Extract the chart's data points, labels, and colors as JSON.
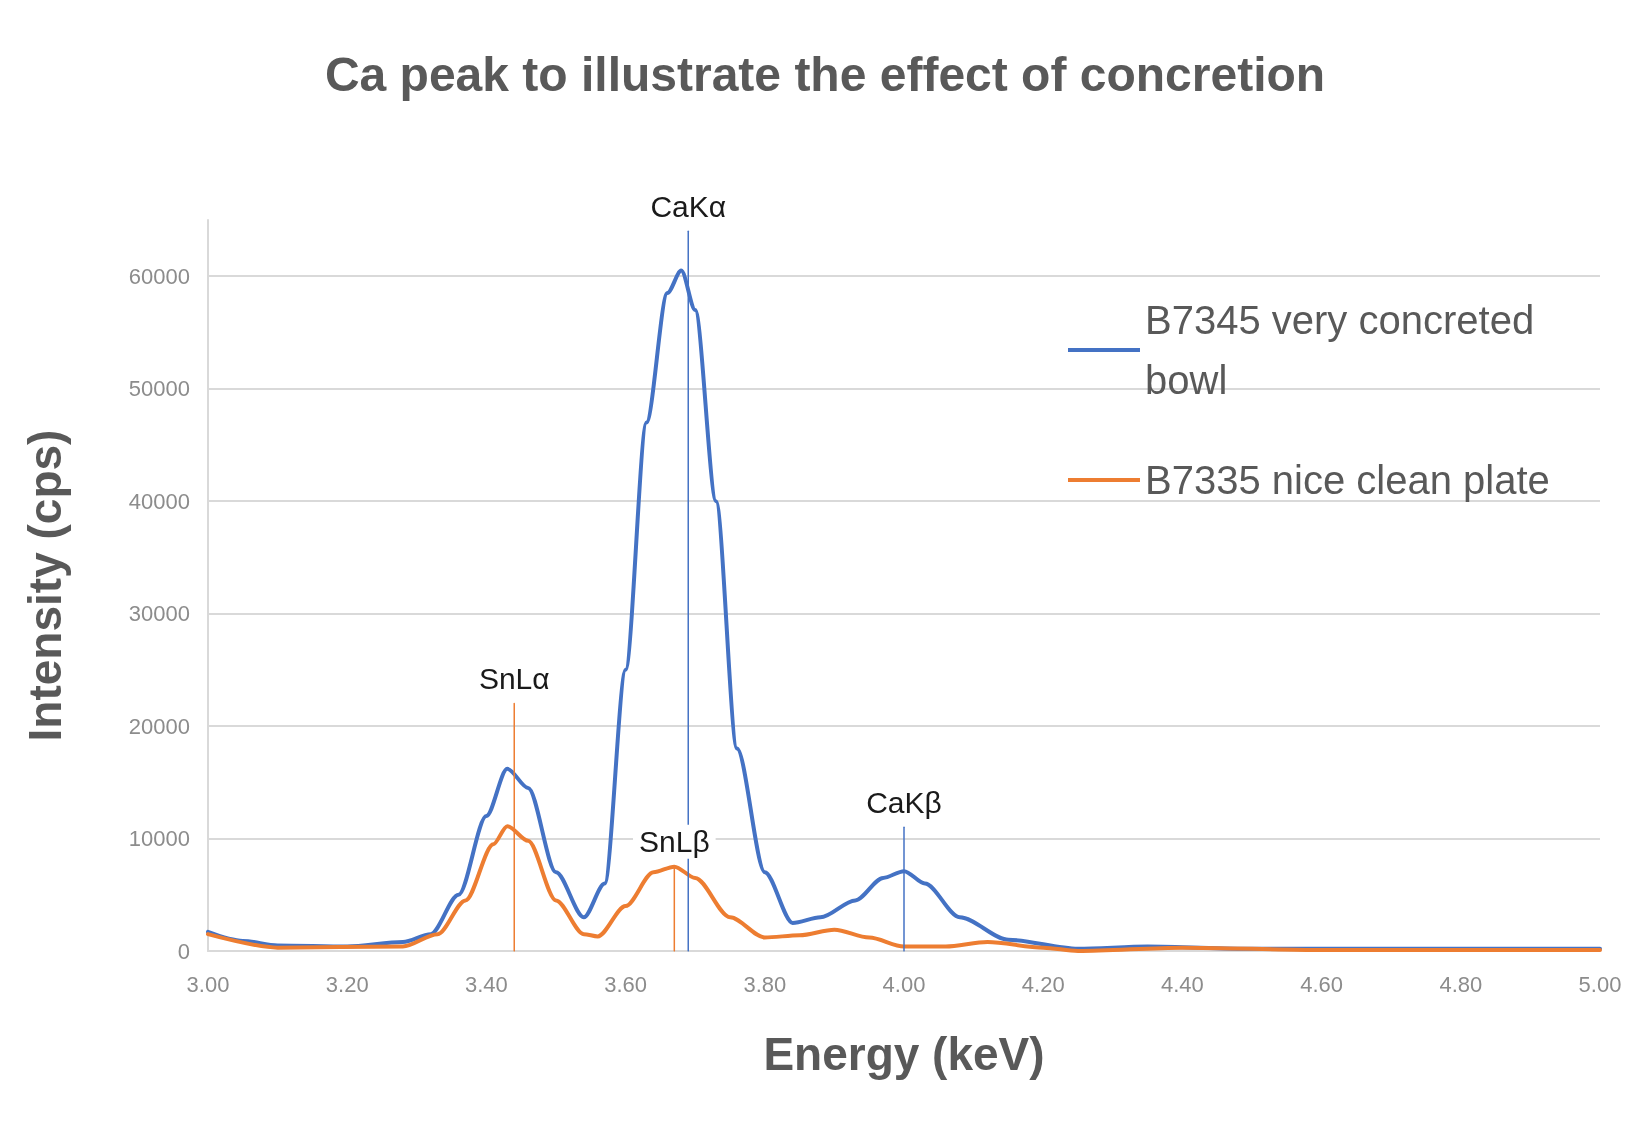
{
  "chart_data": {
    "type": "line",
    "title": "Ca peak to illustrate the effect of concretion",
    "xlabel": "Energy (keV)",
    "ylabel": "Intensity (cps)",
    "xlim": [
      3.0,
      5.0
    ],
    "xticks": [
      {
        "value": 3.0,
        "label": "3.00"
      },
      {
        "value": 3.2,
        "label": "3.20"
      },
      {
        "value": 3.4,
        "label": "3.40"
      },
      {
        "value": 3.6,
        "label": "3.60"
      },
      {
        "value": 3.8,
        "label": "3.80"
      },
      {
        "value": 4.0,
        "label": "4.00"
      },
      {
        "value": 4.2,
        "label": "4.20"
      },
      {
        "value": 4.4,
        "label": "4.40"
      },
      {
        "value": 4.6,
        "label": "4.60"
      },
      {
        "value": 4.8,
        "label": "4.80"
      },
      {
        "value": 5.0,
        "label": "5.00"
      }
    ],
    "ylim": [
      0,
      65000
    ],
    "yticks": [
      0,
      10000,
      20000,
      30000,
      40000,
      50000,
      60000
    ],
    "grid": "y",
    "legend": "top right",
    "marker": "none",
    "line_style": "solid",
    "series": [
      {
        "name": "B7345 very concreted bowl",
        "color": "#4472c4",
        "x": [
          3.0,
          3.05,
          3.1,
          3.2,
          3.28,
          3.32,
          3.36,
          3.4,
          3.43,
          3.46,
          3.5,
          3.54,
          3.57,
          3.6,
          3.63,
          3.66,
          3.68,
          3.7,
          3.73,
          3.76,
          3.8,
          3.84,
          3.88,
          3.93,
          3.97,
          4.0,
          4.03,
          4.08,
          4.15,
          4.25,
          4.35,
          4.5,
          5.0
        ],
        "values": [
          1700,
          900,
          500,
          400,
          800,
          1500,
          5000,
          12000,
          16200,
          14500,
          7000,
          3000,
          6000,
          25000,
          47000,
          58500,
          60500,
          57000,
          40000,
          18000,
          7000,
          2500,
          3000,
          4500,
          6500,
          7100,
          6000,
          3000,
          1000,
          200,
          400,
          200,
          200
        ]
      },
      {
        "name": "B7335 nice clean plate",
        "color": "#ed7d31",
        "x": [
          3.0,
          3.1,
          3.28,
          3.33,
          3.37,
          3.41,
          3.43,
          3.46,
          3.5,
          3.54,
          3.56,
          3.6,
          3.64,
          3.67,
          3.7,
          3.75,
          3.8,
          3.85,
          3.9,
          3.95,
          4.0,
          4.06,
          4.12,
          4.2,
          4.25,
          4.4,
          4.6,
          5.0
        ],
        "values": [
          1500,
          300,
          400,
          1500,
          4500,
          9500,
          11100,
          9800,
          4500,
          1500,
          1300,
          4000,
          7000,
          7500,
          6500,
          3000,
          1200,
          1400,
          1900,
          1200,
          400,
          400,
          800,
          300,
          0,
          300,
          100,
          100
        ]
      },
      {
        "color": "#ed7d31",
        "x": [
          3.44,
          3.44
        ],
        "values": [
          0,
          22000
        ]
      },
      {
        "color": "#4472c4",
        "x": [
          3.69,
          3.69
        ],
        "values": [
          0,
          64000
        ]
      },
      {
        "color": "#ed7d31",
        "x": [
          3.67,
          3.67
        ],
        "values": [
          0,
          7500
        ]
      },
      {
        "color": "#4472c4",
        "x": [
          4.0,
          4.0
        ],
        "values": [
          0,
          11000
        ]
      }
    ],
    "annotations": [
      {
        "text": "SnLα",
        "x": 3.44,
        "y": 22000
      },
      {
        "text": "CaKα",
        "x": 3.69,
        "y": 64000
      },
      {
        "text": "SnLβ",
        "x": 3.67,
        "y": 7500
      },
      {
        "text": "CaKβ",
        "x": 4.0,
        "y": 11000
      }
    ]
  }
}
